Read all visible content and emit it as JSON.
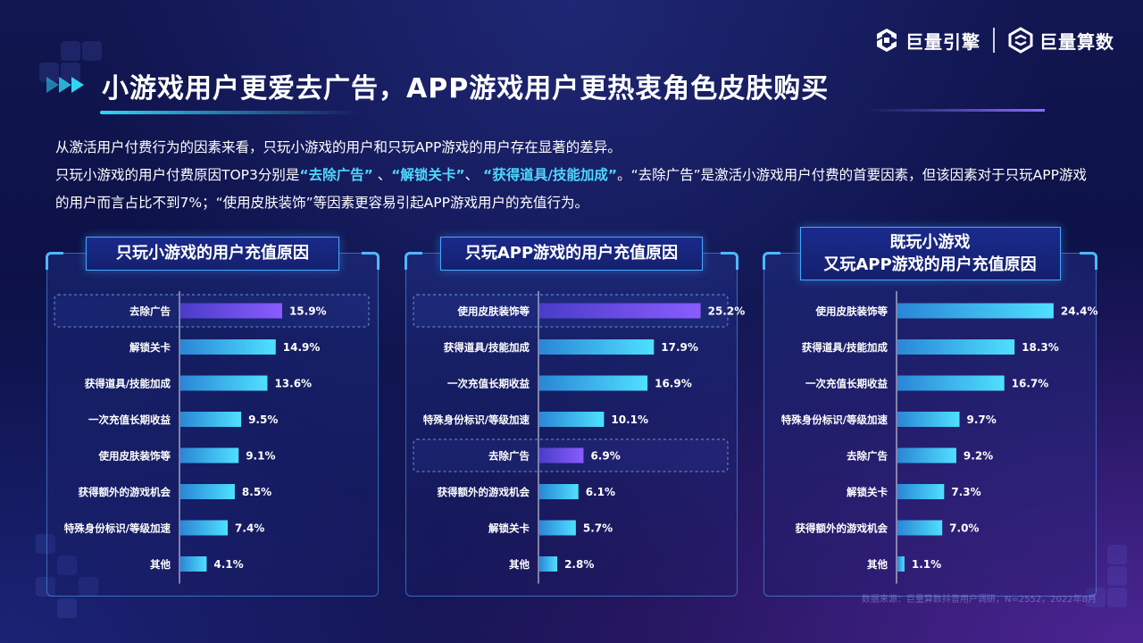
{
  "header": {
    "title": "小游戏用户更爱去广告，APP游戏用户更热衷角色皮肤购买",
    "logo_left": "巨量引擎",
    "logo_right": "巨量算数"
  },
  "intro": {
    "line1": "从激活用户付费行为的因素来看，只玩小游戏的用户和只玩APP游戏的用户存在显著的差异。",
    "line2_pre": "只玩小游戏的用户付费原因TOP3分别是",
    "hl1": "“去除广告”",
    "sep1": " 、",
    "hl2": "“解锁关卡”",
    "sep2": "、 ",
    "hl3": "“获得道具/技能加成”",
    "line2_post": "。“去除广告”是激活小游戏用户付费的首要因素，但该因素对于只玩APP游戏的用户而言占比不到7%；“使用皮肤装饰”等因素更容易引起APP游戏用户的充值行为。"
  },
  "source": "数据来源：巨量算数抖音用户调研，N=2552，2022年8月",
  "colors": {
    "bar_start": "#2a86d6",
    "bar_end": "#4fe0ff",
    "highlight_start": "#4a3cc8",
    "highlight_end": "#8a5cff",
    "accent": "#4fd8ff"
  },
  "chart_data": [
    {
      "type": "bar",
      "orientation": "horizontal",
      "title": "只玩小游戏的用户充值原因",
      "categories": [
        "去除广告",
        "解锁关卡",
        "获得道具/技能加成",
        "一次充值长期收益",
        "使用皮肤装饰等",
        "获得额外的游戏机会",
        "特殊身份标识/等级加速",
        "其他"
      ],
      "values": [
        15.9,
        14.9,
        13.6,
        9.5,
        9.1,
        8.5,
        7.4,
        4.1
      ],
      "labels": [
        "15.9%",
        "14.9%",
        "13.6%",
        "9.5%",
        "9.1%",
        "8.5%",
        "7.4%",
        "4.1%"
      ],
      "highlight": [
        "去除广告"
      ],
      "unit": "%"
    },
    {
      "type": "bar",
      "orientation": "horizontal",
      "title": "只玩APP游戏的用户充值原因",
      "categories": [
        "使用皮肤装饰等",
        "获得道具/技能加成",
        "一次充值长期收益",
        "特殊身份标识/等级加速",
        "去除广告",
        "获得额外的游戏机会",
        "解锁关卡",
        "其他"
      ],
      "values": [
        25.2,
        17.9,
        16.9,
        10.1,
        6.9,
        6.1,
        5.7,
        2.8
      ],
      "labels": [
        "25.2%",
        "17.9%",
        "16.9%",
        "10.1%",
        "6.9%",
        "6.1%",
        "5.7%",
        "2.8%"
      ],
      "highlight": [
        "使用皮肤装饰等",
        "去除广告"
      ],
      "unit": "%"
    },
    {
      "type": "bar",
      "orientation": "horizontal",
      "title": "既玩小游戏\n又玩APP游戏的用户充值原因",
      "title_lines": [
        "既玩小游戏",
        "又玩APP游戏的用户充值原因"
      ],
      "categories": [
        "使用皮肤装饰等",
        "获得道具/技能加成",
        "一次充值长期收益",
        "特殊身份标识/等级加速",
        "去除广告",
        "解锁关卡",
        "获得额外的游戏机会",
        "其他"
      ],
      "values": [
        24.4,
        18.3,
        16.7,
        9.7,
        9.2,
        7.3,
        7.0,
        1.1
      ],
      "labels": [
        "24.4%",
        "18.3%",
        "16.7%",
        "9.7%",
        "9.2%",
        "7.3%",
        "7.0%",
        "1.1%"
      ],
      "highlight": [],
      "unit": "%"
    }
  ]
}
